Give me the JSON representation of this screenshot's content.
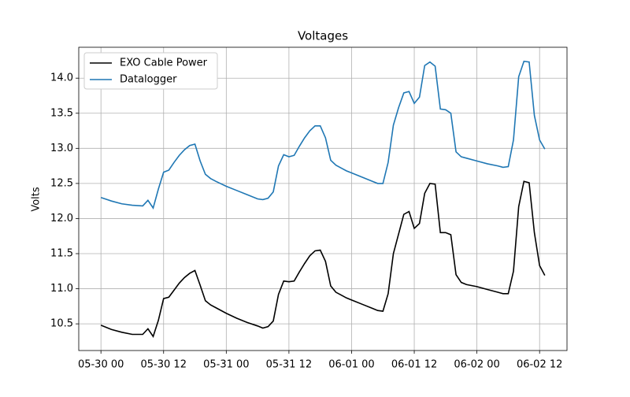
{
  "chart_data": {
    "type": "line",
    "title": "Voltages",
    "ylabel": "Volts",
    "x": [
      0,
      2,
      4,
      6,
      8,
      9,
      10,
      11,
      12,
      13,
      14,
      15,
      16,
      17,
      18,
      19,
      20,
      21,
      22,
      24,
      26,
      28,
      30,
      31,
      32,
      33,
      34,
      35,
      36,
      37,
      38,
      39,
      40,
      41,
      42,
      43,
      44,
      45,
      46,
      47,
      48,
      50,
      52,
      53,
      54,
      55,
      56,
      57,
      58,
      59,
      60,
      61,
      62,
      63,
      64,
      65,
      66,
      67,
      68,
      69,
      70,
      72,
      74,
      76,
      77,
      78,
      79,
      80,
      81,
      82,
      83,
      84,
      85
    ],
    "series": [
      {
        "name": "EXO Cable Power",
        "color": "#000000",
        "values": [
          10.48,
          10.42,
          10.38,
          10.35,
          10.35,
          10.43,
          10.32,
          10.55,
          10.86,
          10.88,
          10.98,
          11.08,
          11.16,
          11.22,
          11.26,
          11.05,
          10.83,
          10.77,
          10.73,
          10.65,
          10.58,
          10.52,
          10.47,
          10.44,
          10.46,
          10.54,
          10.92,
          11.11,
          11.1,
          11.11,
          11.24,
          11.36,
          11.47,
          11.54,
          11.55,
          11.39,
          11.04,
          10.95,
          10.91,
          10.87,
          10.84,
          10.78,
          10.72,
          10.69,
          10.68,
          10.93,
          11.5,
          11.78,
          12.06,
          12.1,
          11.86,
          11.93,
          12.36,
          12.5,
          12.49,
          11.8,
          11.8,
          11.77,
          11.2,
          11.09,
          11.06,
          11.03,
          10.99,
          10.95,
          10.93,
          10.93,
          11.25,
          12.17,
          12.53,
          12.51,
          11.8,
          11.33,
          11.19
        ]
      },
      {
        "name": "Datalogger",
        "color": "#1f77b4",
        "values": [
          12.3,
          12.25,
          12.21,
          12.19,
          12.18,
          12.26,
          12.15,
          12.42,
          12.66,
          12.69,
          12.8,
          12.9,
          12.98,
          13.04,
          13.06,
          12.82,
          12.63,
          12.57,
          12.53,
          12.46,
          12.4,
          12.34,
          12.28,
          12.27,
          12.29,
          12.38,
          12.75,
          12.91,
          12.88,
          12.9,
          13.03,
          13.15,
          13.25,
          13.32,
          13.32,
          13.15,
          12.83,
          12.76,
          12.72,
          12.68,
          12.65,
          12.59,
          12.53,
          12.5,
          12.5,
          12.8,
          13.33,
          13.58,
          13.79,
          13.81,
          13.64,
          13.73,
          14.18,
          14.23,
          14.17,
          13.56,
          13.55,
          13.5,
          12.95,
          12.88,
          12.86,
          12.82,
          12.78,
          12.75,
          12.73,
          12.74,
          13.12,
          14.02,
          14.24,
          14.23,
          13.47,
          13.12,
          12.99
        ]
      }
    ],
    "xlim": [
      -4.25,
      89.25
    ],
    "xticks": [
      {
        "value": 0,
        "label": "05-30 00"
      },
      {
        "value": 12,
        "label": "05-30 12"
      },
      {
        "value": 24,
        "label": "05-31 00"
      },
      {
        "value": 36,
        "label": "05-31 12"
      },
      {
        "value": 48,
        "label": "06-01 00"
      },
      {
        "value": 60,
        "label": "06-01 12"
      },
      {
        "value": 72,
        "label": "06-02 00"
      },
      {
        "value": 84,
        "label": "06-02 12"
      }
    ],
    "ylim": [
      10.12,
      14.44
    ],
    "yticks": [
      10.5,
      {
        "value": 11,
        "label": "11.0"
      },
      11.5,
      {
        "value": 12,
        "label": "12.0"
      },
      12.5,
      {
        "value": 13,
        "label": "13.0"
      },
      13.5,
      {
        "value": 14,
        "label": "14.0"
      }
    ],
    "grid": true,
    "legend": "upper left"
  }
}
